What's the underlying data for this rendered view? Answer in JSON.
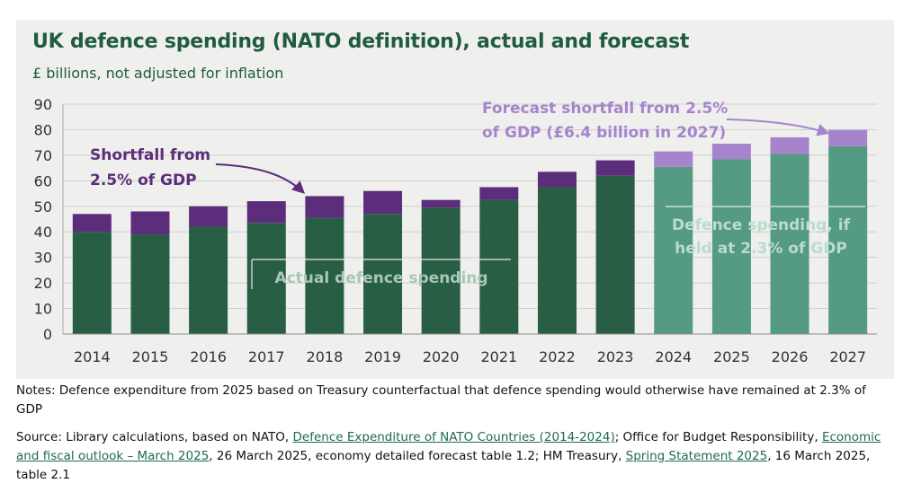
{
  "title": "UK defence spending (NATO definition), actual and forecast",
  "subtitle": "£ billions, not adjusted for inflation",
  "colors": {
    "actual": "#275e44",
    "actual_shortfall": "#5c2d7a",
    "forecast": "#559a84",
    "forecast_shortfall": "#a684cc",
    "annotation_actual_shortfall": "#5c2d7a",
    "annotation_forecast_shortfall": "#a684cc"
  },
  "annotations": {
    "shortfall_line1": "Shortfall from",
    "shortfall_line2": "2.5% of GDP",
    "forecast_shortfall_line1": "Forecast shortfall from 2.5%",
    "forecast_shortfall_line2": "of GDP (£6.4 billion in 2027)",
    "actual_label": "Actual defence spending",
    "forecast_label_line1": "Defence spending, if",
    "forecast_label_line2": "held at 2.3% of GDP"
  },
  "chart_data": {
    "type": "bar",
    "stacked": true,
    "categories": [
      "2014",
      "2015",
      "2016",
      "2017",
      "2018",
      "2019",
      "2020",
      "2021",
      "2022",
      "2023",
      "2024",
      "2025",
      "2026",
      "2027"
    ],
    "series": [
      {
        "name": "Actual defence spending",
        "values": [
          40,
          39,
          42,
          43.5,
          45.5,
          47,
          49.5,
          52.5,
          57.5,
          62,
          null,
          null,
          null,
          null
        ]
      },
      {
        "name": "Shortfall from 2.5% of GDP",
        "values": [
          7,
          9,
          8,
          8.5,
          8.5,
          9,
          3,
          5,
          6,
          6,
          null,
          null,
          null,
          null
        ]
      },
      {
        "name": "Defence spending, if held at 2.3% of GDP",
        "values": [
          null,
          null,
          null,
          null,
          null,
          null,
          null,
          null,
          null,
          null,
          65.5,
          68.5,
          70.5,
          73.5
        ]
      },
      {
        "name": "Forecast shortfall from 2.5% of GDP (£6.4 billion in 2027)",
        "values": [
          null,
          null,
          null,
          null,
          null,
          null,
          null,
          null,
          null,
          null,
          6,
          6,
          6.5,
          6.4
        ]
      }
    ],
    "ylim": [
      0,
      90
    ],
    "yticks": [
      0,
      10,
      20,
      30,
      40,
      50,
      60,
      70,
      80,
      90
    ],
    "grid": true
  },
  "notes": "Notes: Defence expenditure from 2025 based on Treasury counterfactual that defence spending would otherwise have remained at 2.3% of GDP",
  "source": {
    "prefix": "Source: Library calculations, based on NATO, ",
    "link1": "Defence Expenditure of NATO Countries (2014-2024)",
    "mid1": "; Office for Budget Responsibility, ",
    "link2": "Economic and fiscal outlook – March 2025",
    "mid2": ", 26 March 2025, economy detailed forecast table 1.2; HM Treasury, ",
    "link3": "Spring Statement 2025",
    "suffix": ", 16 March 2025, table 2.1"
  }
}
